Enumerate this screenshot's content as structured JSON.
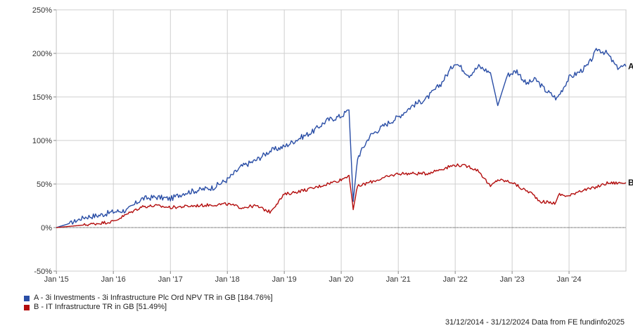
{
  "chart_data": {
    "type": "line",
    "y_ticks": [
      "250%",
      "200%",
      "150%",
      "100%",
      "50%",
      "0%",
      "-50%"
    ],
    "x_ticks": [
      "Jan '15",
      "Jan '16",
      "Jan '17",
      "Jan '18",
      "Jan '19",
      "Jan '20",
      "Jan '21",
      "Jan '22",
      "Jan '23",
      "Jan '24"
    ],
    "ylim": [
      -50,
      250
    ],
    "xlim": [
      "2014-12-31",
      "2024-12-31"
    ],
    "grid": true,
    "series": [
      {
        "name": "A - 3i Investments - 3i Infrastructure Plc Ord NPV TR in GB [184.76%]",
        "end_label": "A",
        "color": "#2a4ea6",
        "x": [
          "2014-12-31",
          "2015-03-31",
          "2015-06-30",
          "2015-09-30",
          "2016-01-01",
          "2016-04-01",
          "2016-06-30",
          "2016-09-30",
          "2017-01-01",
          "2017-04-01",
          "2017-07-01",
          "2017-10-01",
          "2018-01-01",
          "2018-04-01",
          "2018-07-01",
          "2018-10-01",
          "2019-01-01",
          "2019-04-01",
          "2019-07-01",
          "2019-10-01",
          "2020-01-01",
          "2020-02-20",
          "2020-03-18",
          "2020-04-15",
          "2020-07-01",
          "2020-10-01",
          "2021-01-01",
          "2021-04-01",
          "2021-07-01",
          "2021-10-01",
          "2022-01-01",
          "2022-04-01",
          "2022-06-01",
          "2022-08-15",
          "2022-10-01",
          "2022-12-01",
          "2023-02-01",
          "2023-04-01",
          "2023-06-01",
          "2023-08-01",
          "2023-10-15",
          "2024-01-01",
          "2024-03-01",
          "2024-05-01",
          "2024-07-01",
          "2024-09-01",
          "2024-11-01",
          "2024-12-31"
        ],
        "values": [
          0,
          5,
          12,
          14,
          18,
          20,
          33,
          35,
          33,
          40,
          43,
          46,
          55,
          70,
          77,
          88,
          93,
          102,
          110,
          123,
          128,
          135,
          30,
          80,
          105,
          117,
          127,
          140,
          148,
          165,
          190,
          175,
          185,
          178,
          140,
          175,
          180,
          165,
          170,
          158,
          148,
          172,
          178,
          186,
          205,
          200,
          184,
          185
        ]
      },
      {
        "name": "B - IT Infrastructure TR in GB [51.49%]",
        "end_label": "B",
        "color": "#b30d0d",
        "x": [
          "2014-12-31",
          "2015-06-30",
          "2016-01-01",
          "2016-06-30",
          "2016-09-30",
          "2017-01-01",
          "2017-06-01",
          "2018-01-01",
          "2018-04-01",
          "2018-07-01",
          "2018-10-01",
          "2019-01-01",
          "2019-07-01",
          "2020-01-01",
          "2020-02-20",
          "2020-03-18",
          "2020-04-15",
          "2020-07-01",
          "2021-01-01",
          "2021-07-01",
          "2022-01-01",
          "2022-04-01",
          "2022-06-01",
          "2022-08-15",
          "2022-10-01",
          "2023-01-01",
          "2023-03-01",
          "2023-05-01",
          "2023-07-01",
          "2023-10-01",
          "2023-11-01",
          "2024-01-01",
          "2024-03-01",
          "2024-06-01",
          "2024-09-01",
          "2024-12-31"
        ],
        "values": [
          0,
          3,
          7,
          24,
          25,
          23,
          25,
          27,
          23,
          25,
          18,
          38,
          45,
          55,
          60,
          22,
          47,
          52,
          62,
          62,
          72,
          70,
          65,
          47,
          55,
          52,
          45,
          40,
          30,
          28,
          38,
          36,
          42,
          45,
          51,
          51.49
        ]
      }
    ]
  },
  "legend": {
    "a": "A - 3i Investments - 3i Infrastructure Plc Ord NPV TR in GB [184.76%]",
    "b": "B - IT Infrastructure TR in GB [51.49%]",
    "a_color": "#2a4ea6",
    "b_color": "#b30d0d"
  },
  "footer": "31/12/2014 - 31/12/2024 Data from FE fundinfo2025"
}
